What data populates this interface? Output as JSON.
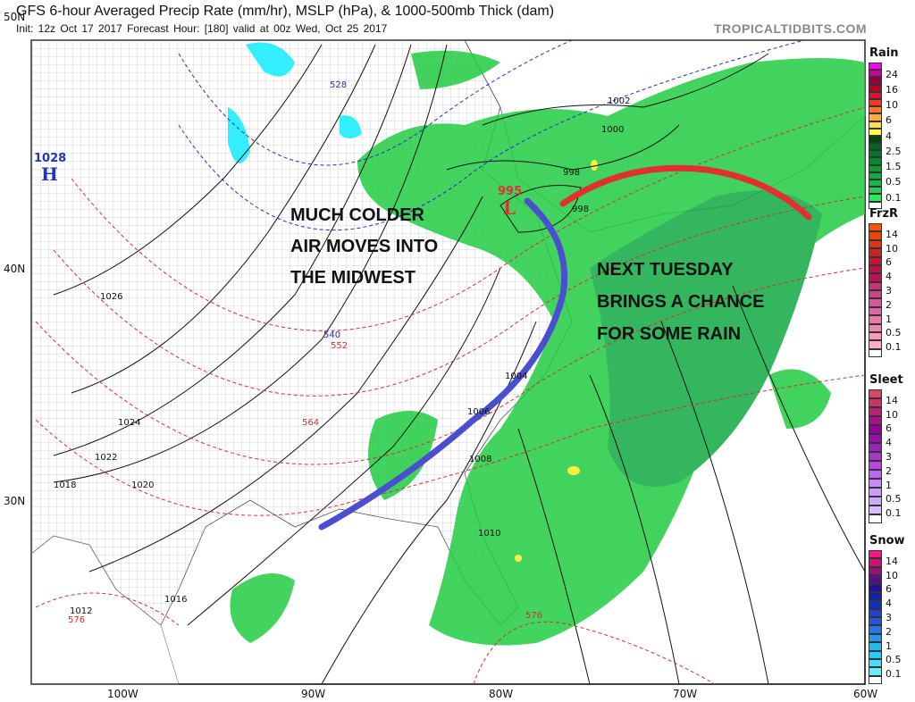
{
  "header": {
    "title": "GFS 6-hour Averaged Precip Rate (mm/hr), MSLP (hPa), & 1000-500mb Thick (dam)",
    "subtitle": "Init: 12z Oct 17 2017   Forecast Hour: [180]   valid at 00z Wed, Oct 25 2017",
    "brand": "TROPICALTIDBITS.COM"
  },
  "axes": {
    "lat_labels": [
      "50N",
      "40N",
      "30N"
    ],
    "lon_labels": [
      "100W",
      "90W",
      "80W",
      "70W",
      "60W"
    ]
  },
  "map": {
    "high": {
      "value": "1028",
      "symbol": "H"
    },
    "low": {
      "value": "995",
      "symbol": "L"
    },
    "isobar_labels": [
      "1026",
      "1024",
      "1022",
      "1020",
      "1018",
      "1016",
      "1012",
      "1010",
      "1008",
      "1006",
      "1004",
      "1002",
      "1000",
      "998",
      "998"
    ],
    "thickness_labels": [
      "528",
      "540",
      "552",
      "564",
      "576",
      "576"
    ],
    "annotations": {
      "midwest": [
        "MUCH COLDER",
        "AIR MOVES INTO",
        "THE MIDWEST"
      ],
      "rain": [
        "NEXT TUESDAY",
        "BRINGS A CHANCE",
        "FOR SOME RAIN"
      ]
    },
    "colors": {
      "cold_front": "#4a4fd0",
      "warm_line": "#e03030",
      "precip": "#22cc44",
      "thickness": "#d03030",
      "thickness_cold": "#2030c0"
    }
  },
  "legends": [
    {
      "name": "Rain",
      "labels": [
        "24",
        "16",
        "10",
        "6",
        "4",
        "2.5",
        "1.5",
        "0.5",
        "0.1"
      ],
      "colors": [
        "#ff00ff",
        "#cc0099",
        "#990044",
        "#bb0022",
        "#dd1133",
        "#ff3322",
        "#ff7722",
        "#ffaa44",
        "#ffdd44",
        "#ffff44",
        "#004411",
        "#006622",
        "#007722",
        "#008833",
        "#119933",
        "#11aa44",
        "#11bb44",
        "#22cc55",
        "#22ee55",
        "#ffffff"
      ]
    },
    {
      "name": "FrzR",
      "labels": [
        "14",
        "10",
        "6",
        "4",
        "3",
        "2",
        "1",
        "0.5",
        "0.1"
      ],
      "colors": [
        "#ff5500",
        "#ee4400",
        "#dd3311",
        "#cc2222",
        "#cc1133",
        "#bb1144",
        "#bb1155",
        "#cc3377",
        "#cc4488",
        "#dd5599",
        "#dd66aa",
        "#ee77aa",
        "#ee88aa",
        "#ff99bb",
        "#ffaacc",
        "#ffffff"
      ]
    },
    {
      "name": "Sleet",
      "labels": [
        "14",
        "10",
        "6",
        "4",
        "3",
        "2",
        "1",
        "0.5",
        "0.1"
      ],
      "colors": [
        "#dd4466",
        "#cc3366",
        "#bb2277",
        "#aa1188",
        "#990099",
        "#9911aa",
        "#9922bb",
        "#aa33cc",
        "#bb44dd",
        "#bb66ee",
        "#cc88ff",
        "#cc99ff",
        "#ccaaff",
        "#ddbbff",
        "#ffffff"
      ]
    },
    {
      "name": "Snow",
      "labels": [
        "14",
        "10",
        "6",
        "4",
        "3",
        "2",
        "1",
        "0.5",
        "0.1"
      ],
      "colors": [
        "#ff1188",
        "#cc1177",
        "#991177",
        "#551188",
        "#221199",
        "#1122aa",
        "#1133bb",
        "#2244cc",
        "#2255dd",
        "#2277ee",
        "#2299ee",
        "#22bbee",
        "#22ccff",
        "#44ddff",
        "#66eeff",
        "#ffffff"
      ]
    }
  ]
}
